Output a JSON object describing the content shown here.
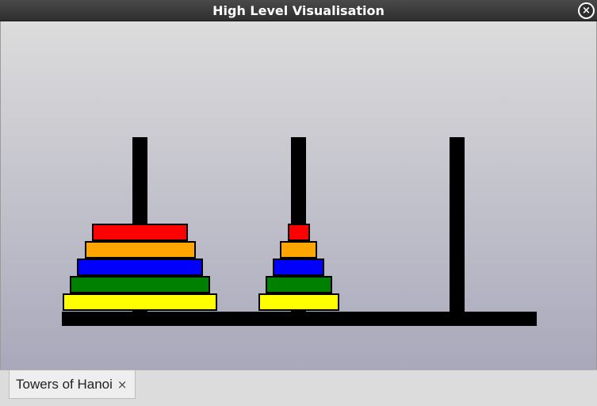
{
  "window": {
    "title": "High Level Visualisation",
    "close_icon": "close-circle-icon",
    "close_glyph": "×"
  },
  "puzzle": {
    "peg_count": 3,
    "pegs": [
      {
        "disks": [
          "yellow",
          "green",
          "blue",
          "orange",
          "red"
        ]
      },
      {
        "disks": [
          "yellow",
          "green",
          "blue",
          "orange",
          "red"
        ]
      },
      {
        "disks": []
      }
    ],
    "colors": {
      "red": "#ff0000",
      "orange": "#ffa500",
      "blue": "#0000ff",
      "green": "#008000",
      "yellow": "#ffff00",
      "peg": "#000000"
    }
  },
  "tabs": [
    {
      "label": "Towers of Hanoi",
      "close_glyph": "×",
      "close_icon": "close-icon"
    }
  ]
}
